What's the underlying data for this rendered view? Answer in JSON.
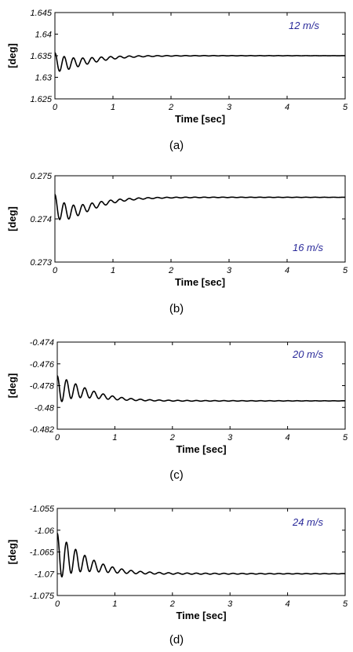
{
  "chart_data": [
    {
      "type": "line",
      "caption": "(a)",
      "annotation": "12 m/s",
      "xlabel": "Time [sec]",
      "ylabel": "[deg]",
      "xlim": [
        0,
        5
      ],
      "ylim": [
        1.625,
        1.645
      ],
      "xticks": [
        "0",
        "1",
        "2",
        "3",
        "4",
        "5"
      ],
      "yticks": [
        "1.625",
        "1.63",
        "1.635",
        "1.64",
        "1.645"
      ],
      "signal": {
        "steady": 1.635,
        "initial": 1.6335,
        "amplitude": 0.0022,
        "decay_time": 0.5,
        "frequency_hz": 6.3,
        "drift": -0.0015,
        "drift_time": 0.3
      }
    },
    {
      "type": "line",
      "caption": "(b)",
      "annotation": "16 m/s",
      "xlabel": "Time [sec]",
      "ylabel": "[deg]",
      "xlim": [
        0,
        5
      ],
      "ylim": [
        0.273,
        0.275
      ],
      "xticks": [
        "0",
        "1",
        "2",
        "3",
        "4",
        "5"
      ],
      "yticks": [
        "0.273",
        "0.274",
        "0.275"
      ],
      "signal": {
        "steady": 0.2745,
        "initial": 0.2743,
        "amplitude": 0.00027,
        "decay_time": 0.5,
        "frequency_hz": 6.3,
        "drift": -0.0003,
        "drift_time": 0.3
      }
    },
    {
      "type": "line",
      "caption": "(c)",
      "annotation": "20 m/s",
      "xlabel": "Time [sec]",
      "ylabel": "[deg]",
      "xlim": [
        0,
        5
      ],
      "ylim": [
        -0.482,
        -0.474
      ],
      "xticks": [
        "0",
        "1",
        "2",
        "3",
        "4",
        "5"
      ],
      "yticks": [
        "-0.482",
        "-0.48",
        "-0.478",
        "-0.476",
        "-0.474"
      ],
      "signal": {
        "steady": -0.4794,
        "initial": -0.4784,
        "amplitude": 0.0013,
        "decay_time": 0.45,
        "frequency_hz": 6.3,
        "drift": 0.0008,
        "drift_time": 0.3
      }
    },
    {
      "type": "line",
      "caption": "(d)",
      "annotation": "24 m/s",
      "xlabel": "Time [sec]",
      "ylabel": "[deg]",
      "xlim": [
        0,
        5
      ],
      "ylim": [
        -1.075,
        -1.055
      ],
      "xticks": [
        "0",
        "1",
        "2",
        "3",
        "4",
        "5"
      ],
      "yticks": [
        "-1.075",
        "-1.07",
        "-1.065",
        "-1.06",
        "-1.055"
      ],
      "signal": {
        "steady": -1.07,
        "initial": -1.066,
        "amplitude": 0.0053,
        "decay_time": 0.45,
        "frequency_hz": 6.3,
        "drift": 0.0025,
        "drift_time": 0.3
      }
    }
  ]
}
